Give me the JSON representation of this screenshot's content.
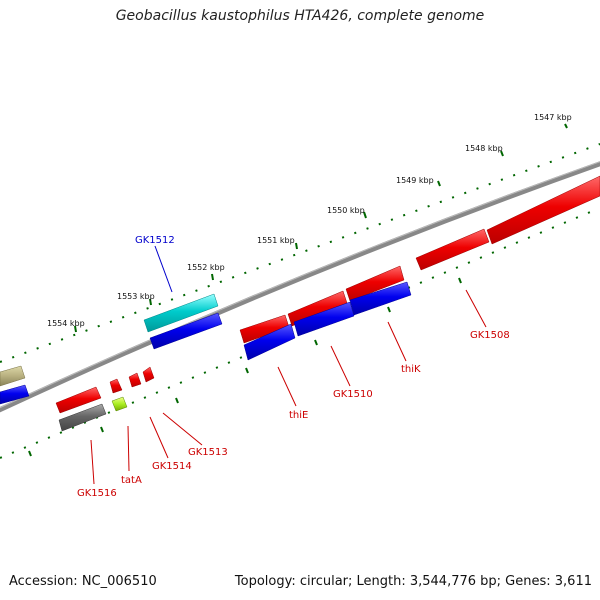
{
  "title": "Geobacillus kaustophilus HTA426, complete genome",
  "footer": {
    "accession": "Accession: NC_006510",
    "topology": "Topology: circular; Length: 3,544,776 bp; Genes: 3,611"
  },
  "ticks": [
    {
      "label": "1547 kbp"
    },
    {
      "label": "1548 kbp"
    },
    {
      "label": "1549 kbp"
    },
    {
      "label": "1550 kbp"
    },
    {
      "label": "1551 kbp"
    },
    {
      "label": "1552 kbp"
    },
    {
      "label": "1553 kbp"
    },
    {
      "label": "1554 kbp"
    }
  ],
  "gene_labels": [
    {
      "name": "GK1512",
      "color": "#0000cc"
    },
    {
      "name": "GK1508",
      "color": "#cc0000"
    },
    {
      "name": "thiK",
      "color": "#cc0000"
    },
    {
      "name": "GK1510",
      "color": "#cc0000"
    },
    {
      "name": "thiE",
      "color": "#cc0000"
    },
    {
      "name": "GK1513",
      "color": "#cc0000"
    },
    {
      "name": "GK1514",
      "color": "#cc0000"
    },
    {
      "name": "tatA",
      "color": "#cc0000"
    },
    {
      "name": "GK1516",
      "color": "#cc0000"
    }
  ],
  "colors": {
    "forward_cds": "#ee0000",
    "reverse_cds": "#0000ee",
    "rna": "#00cccc",
    "other": "#666666",
    "backbone": "#888888",
    "ticks": "#006600"
  }
}
